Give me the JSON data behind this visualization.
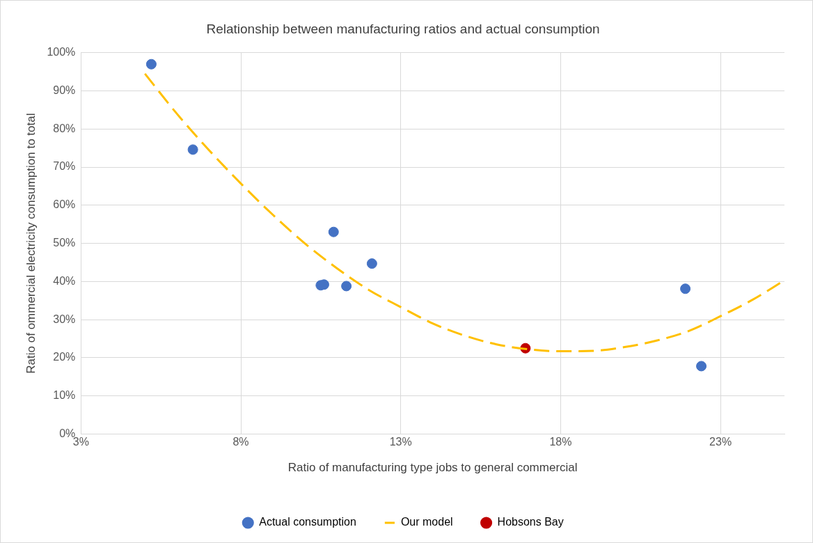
{
  "chart_data": {
    "type": "scatter",
    "title": "Relationship between manufacturing ratios and actual consumption",
    "xlabel": "Ratio of manufacturing type jobs to general commercial",
    "ylabel": "Ratio of ommercial electricity consumption to total",
    "xlim": [
      3,
      25
    ],
    "xticks": [
      {
        "value": 3,
        "label": "3%"
      },
      {
        "value": 8,
        "label": "8%"
      },
      {
        "value": 13,
        "label": "13%"
      },
      {
        "value": 18,
        "label": "18%"
      },
      {
        "value": 23,
        "label": "23%"
      }
    ],
    "ylim": [
      0,
      100
    ],
    "yticks": [
      {
        "value": 0,
        "label": "0%"
      },
      {
        "value": 10,
        "label": "10%"
      },
      {
        "value": 20,
        "label": "20%"
      },
      {
        "value": 30,
        "label": "30%"
      },
      {
        "value": 40,
        "label": "40%"
      },
      {
        "value": 50,
        "label": "50%"
      },
      {
        "value": 60,
        "label": "60%"
      },
      {
        "value": 70,
        "label": "70%"
      },
      {
        "value": 80,
        "label": "80%"
      },
      {
        "value": 90,
        "label": "90%"
      },
      {
        "value": 100,
        "label": "100%"
      }
    ],
    "grid": true,
    "legend": "bottom",
    "marker": "circle",
    "series": [
      {
        "name": "Actual consumption",
        "type": "scatter",
        "color": "#4472c4",
        "x": [
          5.2,
          6.5,
          10.5,
          10.6,
          10.9,
          11.3,
          12.1,
          21.9,
          22.4
        ],
        "values": [
          97,
          74.6,
          39,
          39.2,
          53,
          38.8,
          44.7,
          38.1,
          17.8
        ]
      },
      {
        "name": "Our model",
        "type": "line",
        "color": "#ffc000",
        "line_style": "dashed",
        "marker": "none",
        "x": [
          5,
          6,
          7,
          8,
          9,
          10,
          11,
          12,
          13,
          14,
          15,
          16,
          17,
          18,
          19,
          20,
          21,
          22,
          23,
          24,
          25
        ],
        "values": [
          94.5,
          84,
          74.5,
          65.7,
          57.5,
          50,
          43.5,
          37.8,
          33.3,
          29,
          25.8,
          23.5,
          22.2,
          21.7,
          21.8,
          22.8,
          24.5,
          27,
          30.9,
          35.2,
          40.3
        ]
      },
      {
        "name": "Hobsons Bay",
        "type": "scatter",
        "color": "#c00000",
        "x": [
          16.9
        ],
        "values": [
          22.5
        ]
      }
    ]
  }
}
